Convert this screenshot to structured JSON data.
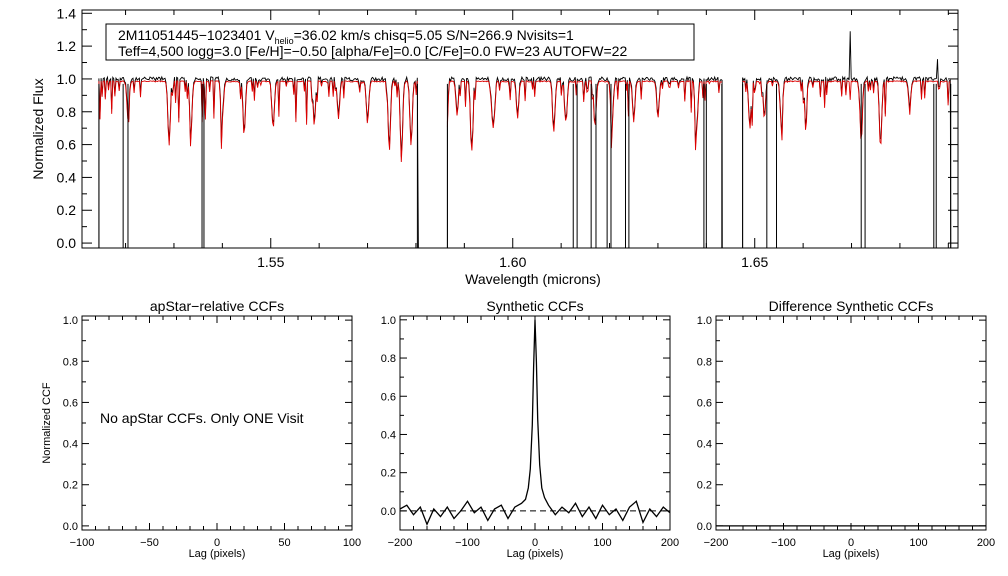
{
  "chart_data": [
    {
      "type": "line",
      "panel": "spectrum",
      "xlabel": "Wavelength (microns)",
      "ylabel": "Normalized Flux",
      "xlim": [
        1.511,
        1.692
      ],
      "ylim": [
        -0.03,
        1.42
      ],
      "xticks": [
        1.55,
        1.6,
        1.65
      ],
      "xtick_labels": [
        "1.55",
        "1.60",
        "1.65"
      ],
      "yticks": [
        0.0,
        0.2,
        0.4,
        0.6,
        0.8,
        1.0,
        1.2,
        1.4
      ],
      "ytick_labels": [
        "0.0",
        "0.2",
        "0.4",
        "0.6",
        "0.8",
        "1.0",
        "1.2",
        "1.4"
      ],
      "info_box": {
        "line1": {
          "prefix": "2M11051445−1023401  V",
          "sub": "helio",
          "suffix": "=36.02 km/s  chisq=5.05  S/N=266.9  Nvisits=1"
        },
        "line2": "Teff=4,500 logg=3.0 [Fe/H]=−0.50 [alpha/Fe]=0.0 [C/Fe]=0.0 FW=23 AUTOFW=22"
      },
      "chip_ranges": [
        [
          1.5145,
          1.5805
        ],
        [
          1.5865,
          1.6433
        ],
        [
          1.6475,
          1.6905
        ]
      ],
      "bad_pixel_drops": [
        1.5145,
        1.5195,
        1.5205,
        1.5358,
        1.5362,
        1.5803,
        1.5865,
        1.6125,
        1.6133,
        1.6162,
        1.6172,
        1.6195,
        1.6203,
        1.6233,
        1.624,
        1.6395,
        1.64,
        1.6432,
        1.6475,
        1.6525,
        1.6545,
        1.672,
        1.6728,
        1.687,
        1.6875,
        1.6905
      ],
      "strong_absorption": [
        {
          "x": 1.5205,
          "y": 0.8
        },
        {
          "x": 1.529,
          "y": 0.62
        },
        {
          "x": 1.5335,
          "y": 0.7
        },
        {
          "x": 1.54,
          "y": 0.78
        },
        {
          "x": 1.5445,
          "y": 0.68
        },
        {
          "x": 1.5505,
          "y": 0.72
        },
        {
          "x": 1.559,
          "y": 0.74
        },
        {
          "x": 1.564,
          "y": 0.78
        },
        {
          "x": 1.57,
          "y": 0.75
        },
        {
          "x": 1.5745,
          "y": 0.58
        },
        {
          "x": 1.577,
          "y": 0.52
        },
        {
          "x": 1.579,
          "y": 0.62
        },
        {
          "x": 1.5885,
          "y": 0.8
        },
        {
          "x": 1.5915,
          "y": 0.58
        },
        {
          "x": 1.596,
          "y": 0.72
        },
        {
          "x": 1.601,
          "y": 0.78
        },
        {
          "x": 1.6085,
          "y": 0.7
        },
        {
          "x": 1.611,
          "y": 0.76
        },
        {
          "x": 1.617,
          "y": 0.73
        },
        {
          "x": 1.6205,
          "y": 0.72
        },
        {
          "x": 1.625,
          "y": 0.76
        },
        {
          "x": 1.63,
          "y": 0.78
        },
        {
          "x": 1.638,
          "y": 0.7
        },
        {
          "x": 1.649,
          "y": 0.72
        },
        {
          "x": 1.652,
          "y": 0.78
        },
        {
          "x": 1.6555,
          "y": 0.73
        },
        {
          "x": 1.6605,
          "y": 0.82
        },
        {
          "x": 1.672,
          "y": 0.64
        },
        {
          "x": 1.676,
          "y": 0.6
        },
        {
          "x": 1.682,
          "y": 0.85
        }
      ],
      "emission_spikes": [
        {
          "x": 1.6698,
          "y": 1.29
        },
        {
          "x": 1.6878,
          "y": 1.12
        }
      ],
      "series": [
        {
          "style": "observed",
          "color": "#000000",
          "continuum": 1.0
        },
        {
          "style": "synthetic model",
          "color": "#dd0000",
          "continuum": 0.985
        }
      ]
    },
    {
      "type": "line",
      "panel": "apstar-ccf",
      "title": "apStar−relative CCFs",
      "xlabel": "Lag (pixels)",
      "ylabel": "Normalized CCF",
      "xlim": [
        -100,
        100
      ],
      "ylim": [
        -0.02,
        1.02
      ],
      "xticks": [
        -100,
        -50,
        0,
        50,
        100
      ],
      "xtick_labels": [
        "−100",
        "−50",
        "0",
        "50",
        "100"
      ],
      "yticks": [
        0.0,
        0.2,
        0.4,
        0.6,
        0.8,
        1.0
      ],
      "ytick_labels": [
        "0.0",
        "0.2",
        "0.4",
        "0.6",
        "0.8",
        "1.0"
      ],
      "message": "No apStar CCFs.  Only ONE Visit",
      "series": []
    },
    {
      "type": "line",
      "panel": "synthetic-ccf",
      "title": "Synthetic CCFs",
      "xlabel": "Lag (pixels)",
      "xlim": [
        -200,
        200
      ],
      "ylim": [
        -0.1,
        1.02
      ],
      "xticks": [
        -200,
        -100,
        0,
        100,
        200
      ],
      "xtick_labels": [
        "−200",
        "−100",
        "0",
        "100",
        "200"
      ],
      "yticks": [
        0.0,
        0.2,
        0.4,
        0.6,
        0.8,
        1.0
      ],
      "ytick_labels": [
        "0.0",
        "0.2",
        "0.4",
        "0.6",
        "0.8",
        "1.0"
      ],
      "zero_line": 0.0,
      "series": [
        {
          "color": "#000000",
          "x": [
            -200,
            -190,
            -180,
            -170,
            -160,
            -150,
            -140,
            -130,
            -120,
            -110,
            -100,
            -90,
            -80,
            -70,
            -60,
            -50,
            -40,
            -30,
            -20,
            -14,
            -10,
            -7,
            -4,
            -2,
            0,
            2,
            4,
            7,
            10,
            14,
            20,
            30,
            40,
            50,
            60,
            70,
            80,
            90,
            100,
            110,
            120,
            130,
            140,
            150,
            160,
            170,
            180,
            190,
            200
          ],
          "y": [
            0.01,
            0.03,
            -0.02,
            0.02,
            -0.07,
            0.01,
            -0.03,
            0.02,
            -0.04,
            0.0,
            0.05,
            -0.01,
            0.02,
            -0.05,
            0.01,
            0.03,
            -0.04,
            0.02,
            0.04,
            0.06,
            0.12,
            0.22,
            0.45,
            0.75,
            1.0,
            0.78,
            0.48,
            0.24,
            0.12,
            0.07,
            0.03,
            -0.02,
            0.02,
            -0.01,
            0.04,
            -0.03,
            0.02,
            -0.04,
            0.03,
            -0.02,
            0.01,
            -0.05,
            0.02,
            0.05,
            -0.06,
            0.01,
            -0.03,
            0.02,
            -0.01
          ]
        }
      ]
    },
    {
      "type": "line",
      "panel": "difference-ccf",
      "title": "Difference Synthetic CCFs",
      "xlabel": "Lag (pixels)",
      "xlim": [
        -200,
        200
      ],
      "ylim": [
        -0.02,
        1.02
      ],
      "xticks": [
        -200,
        -100,
        0,
        100,
        200
      ],
      "xtick_labels": [
        "−200",
        "−100",
        "0",
        "100",
        "200"
      ],
      "yticks": [
        0.0,
        0.2,
        0.4,
        0.6,
        0.8,
        1.0
      ],
      "ytick_labels": [
        "0.0",
        "0.2",
        "0.4",
        "0.6",
        "0.8",
        "1.0"
      ],
      "series": [
        {
          "color": "#000000",
          "x": [
            -200,
            200
          ],
          "y": [
            0.0,
            0.0
          ]
        }
      ]
    }
  ]
}
